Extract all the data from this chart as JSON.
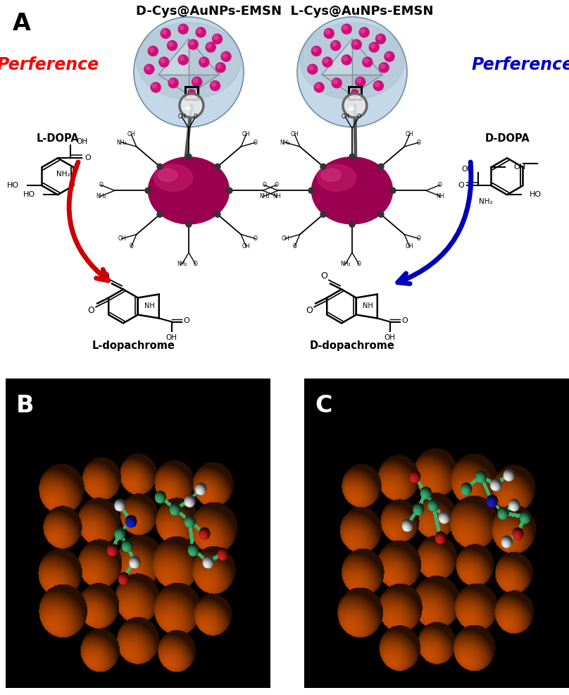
{
  "title_text": "D-Cys@AuNPs-EMSN  L-Cys@AuNPs-EMSN",
  "label_A": "A",
  "label_B": "B",
  "label_C": "C",
  "preference_left": "Perference",
  "preference_right": "Perference",
  "preference_left_color": "#FF0000",
  "preference_right_color": "#0000CC",
  "ldopa_label": "L-DOPA",
  "ddopa_label": "D-DOPA",
  "ldopachrome_label": "L-dopachrome",
  "ddopachrome_label": "D-dopachrome",
  "arrow_left_color": "#CC0000",
  "arrow_right_color": "#0000BB",
  "background_color": "#FFFFFF",
  "panel_BC_background": "#000000",
  "nanoparticle_color_dark": "#6B0040",
  "nanoparticle_color_mid": "#AA1060",
  "nanoparticle_color_light": "#CC3080",
  "emsn_color": "#B8CBD8",
  "aunp_dot_color": "#CC1177",
  "golden_orange": "#C85000",
  "teal_bond": "#3CB371",
  "fig_width": 8.08,
  "fig_height": 9.86,
  "dpi": 100
}
